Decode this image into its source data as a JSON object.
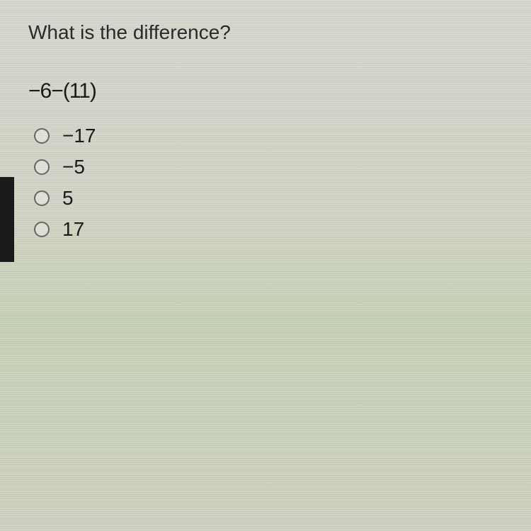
{
  "question": {
    "prompt": "What is the difference?",
    "expression": "−6−(11)"
  },
  "options": [
    {
      "label": "−17"
    },
    {
      "label": "−5"
    },
    {
      "label": "5"
    },
    {
      "label": "17"
    }
  ],
  "colors": {
    "background_top": "#d8d8d0",
    "background_mid": "#c8d4b8",
    "text": "#1a1a1a",
    "radio_border": "#666666"
  },
  "typography": {
    "question_fontsize": 28,
    "expression_fontsize": 30,
    "option_fontsize": 28,
    "font_family": "Arial"
  }
}
